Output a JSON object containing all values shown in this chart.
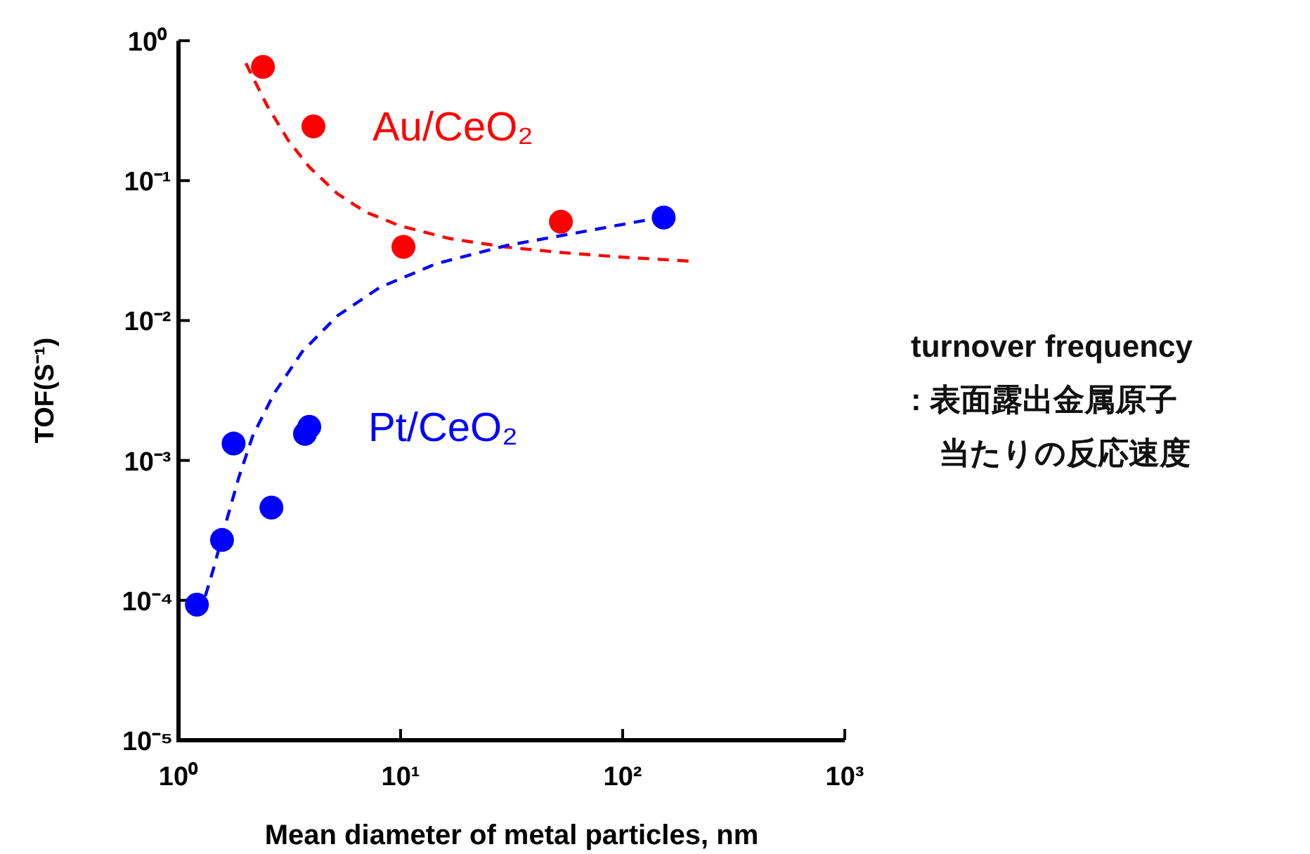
{
  "chart_data": {
    "type": "scatter",
    "xlabel": "Mean diameter of metal particles, nm",
    "ylabel": "TOF(S⁻¹)",
    "log": "xy",
    "xlim": [
      1,
      1000
    ],
    "ylim": [
      1e-05,
      1
    ],
    "xticks": [
      {
        "value": 1,
        "label": "10⁰"
      },
      {
        "value": 10,
        "label": "10¹"
      },
      {
        "value": 100,
        "label": "10²"
      },
      {
        "value": 1000,
        "label": "10³"
      }
    ],
    "yticks": [
      {
        "value": 1e-05,
        "label": "10⁻⁵"
      },
      {
        "value": 0.0001,
        "label": "10⁻⁴"
      },
      {
        "value": 0.001,
        "label": "10⁻³"
      },
      {
        "value": 0.01,
        "label": "10⁻²"
      },
      {
        "value": 0.1,
        "label": "10⁻¹"
      },
      {
        "value": 1,
        "label": "10⁰"
      }
    ],
    "grid": false,
    "legend": false,
    "annotations": [
      "turnover frequency",
      ": 表面露出金属原子",
      "当たりの反応速度"
    ],
    "series": [
      {
        "name": "Au/CeO₂",
        "marker": "circle",
        "color": "#ff0000",
        "x": [
          2.4,
          4.05,
          10.3,
          52.7
        ],
        "values": [
          0.65,
          0.244,
          0.0336,
          0.0508
        ]
      },
      {
        "name": "Pt/CeO₂",
        "marker": "circle",
        "color": "#0000ff",
        "x": [
          1.21,
          1.57,
          1.77,
          2.62,
          3.71,
          3.88,
          153
        ],
        "values": [
          9.3e-05,
          0.00027,
          0.00132,
          0.00046,
          0.00155,
          0.00174,
          0.0545
        ]
      },
      {
        "type": "line",
        "line_style": "dashed",
        "color": "#ff0000",
        "x": [
          2.01,
          2.5,
          3.12,
          3.88,
          5.19,
          6.95,
          10,
          16.7,
          29.8,
          53.4,
          95.7,
          198
        ],
        "values": [
          0.69,
          0.346,
          0.194,
          0.125,
          0.0807,
          0.0597,
          0.0474,
          0.0385,
          0.0335,
          0.0306,
          0.0285,
          0.0266
        ]
      },
      {
        "type": "line",
        "line_style": "dashed",
        "color": "#0000ff",
        "x": [
          1.32,
          1.44,
          1.62,
          1.87,
          2.16,
          2.69,
          3.61,
          5.19,
          8.04,
          14.4,
          29.8,
          61.8,
          148
        ],
        "values": [
          0.000107,
          0.00017,
          0.00034,
          0.00076,
          0.0015,
          0.003,
          0.006,
          0.0108,
          0.0172,
          0.0254,
          0.0343,
          0.0423,
          0.0545
        ]
      }
    ]
  }
}
